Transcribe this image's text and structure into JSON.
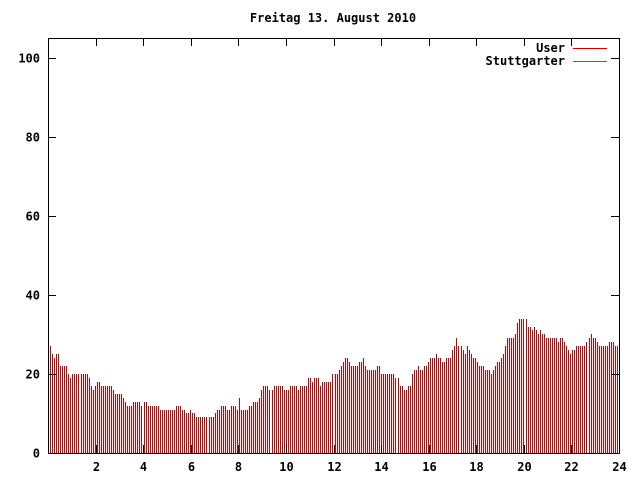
{
  "chart_data": {
    "type": "bar",
    "title": "Freitag 13. August 2010",
    "xlabel": "",
    "ylabel": "",
    "xlim": [
      0,
      24
    ],
    "ylim": [
      0,
      105
    ],
    "x_ticks": [
      "2",
      "4",
      "6",
      "8",
      "10",
      "12",
      "14",
      "16",
      "18",
      "20",
      "22",
      "24"
    ],
    "y_ticks": [
      "0",
      "20",
      "40",
      "60",
      "80",
      "100"
    ],
    "legend_position": "top-right",
    "grid": false,
    "series": [
      {
        "name": "User",
        "color": "#cc0000",
        "values": [
          26,
          27,
          25,
          24,
          25,
          25,
          22,
          22,
          22,
          22,
          20,
          19,
          20,
          20,
          20,
          20,
          20,
          20,
          20,
          20,
          19,
          17,
          16,
          17,
          18,
          18,
          17,
          17,
          17,
          17,
          17,
          17,
          16,
          15,
          15,
          15,
          15,
          14,
          13,
          12,
          12,
          12,
          13,
          13,
          13,
          13,
          12,
          13,
          13,
          12,
          12,
          12,
          12,
          12,
          12,
          11,
          11,
          11,
          11,
          11,
          11,
          11,
          11,
          12,
          12,
          12,
          11,
          11,
          10,
          10,
          11,
          10,
          10,
          9,
          9,
          9,
          9,
          9,
          9,
          9,
          9,
          9,
          10,
          11,
          11,
          12,
          12,
          12,
          11,
          11,
          12,
          12,
          12,
          11,
          14,
          11,
          11,
          11,
          11,
          12,
          12,
          13,
          13,
          13,
          14,
          16,
          17,
          17,
          17,
          16,
          16,
          17,
          17,
          17,
          17,
          17,
          16,
          16,
          16,
          17,
          17,
          17,
          17,
          16,
          17,
          17,
          17,
          17,
          19,
          19,
          18,
          19,
          19,
          19,
          17,
          18,
          18,
          18,
          18,
          18,
          20,
          20,
          20,
          21,
          22,
          23,
          24,
          24,
          23,
          22,
          22,
          22,
          22,
          23,
          23,
          24,
          22,
          21,
          21,
          21,
          21,
          21,
          22,
          22,
          20,
          20,
          20,
          20,
          20,
          20,
          20,
          19,
          19,
          17,
          17,
          16,
          16,
          17,
          17,
          20,
          21,
          21,
          22,
          21,
          21,
          22,
          22,
          23,
          24,
          24,
          24,
          25,
          24,
          24,
          23,
          23,
          24,
          24,
          24,
          26,
          27,
          29,
          27,
          27,
          26,
          25,
          27,
          26,
          25,
          24,
          24,
          23,
          22,
          22,
          22,
          21,
          21,
          21,
          20,
          21,
          22,
          23,
          23,
          24,
          25,
          27,
          29,
          29,
          29,
          29,
          30,
          33,
          34,
          34,
          34,
          34,
          32,
          32,
          31,
          32,
          31,
          30,
          31,
          30,
          30,
          29,
          29,
          29,
          29,
          29,
          29,
          28,
          29,
          29,
          28,
          27,
          26,
          25,
          26,
          26,
          27,
          27,
          27,
          27,
          27,
          28,
          29,
          30,
          29,
          29,
          28,
          27,
          27,
          27,
          27,
          27,
          28,
          28,
          28,
          27,
          27
        ]
      },
      {
        "name": "Stuttgarter",
        "color": "#008b8b",
        "values": []
      }
    ]
  }
}
